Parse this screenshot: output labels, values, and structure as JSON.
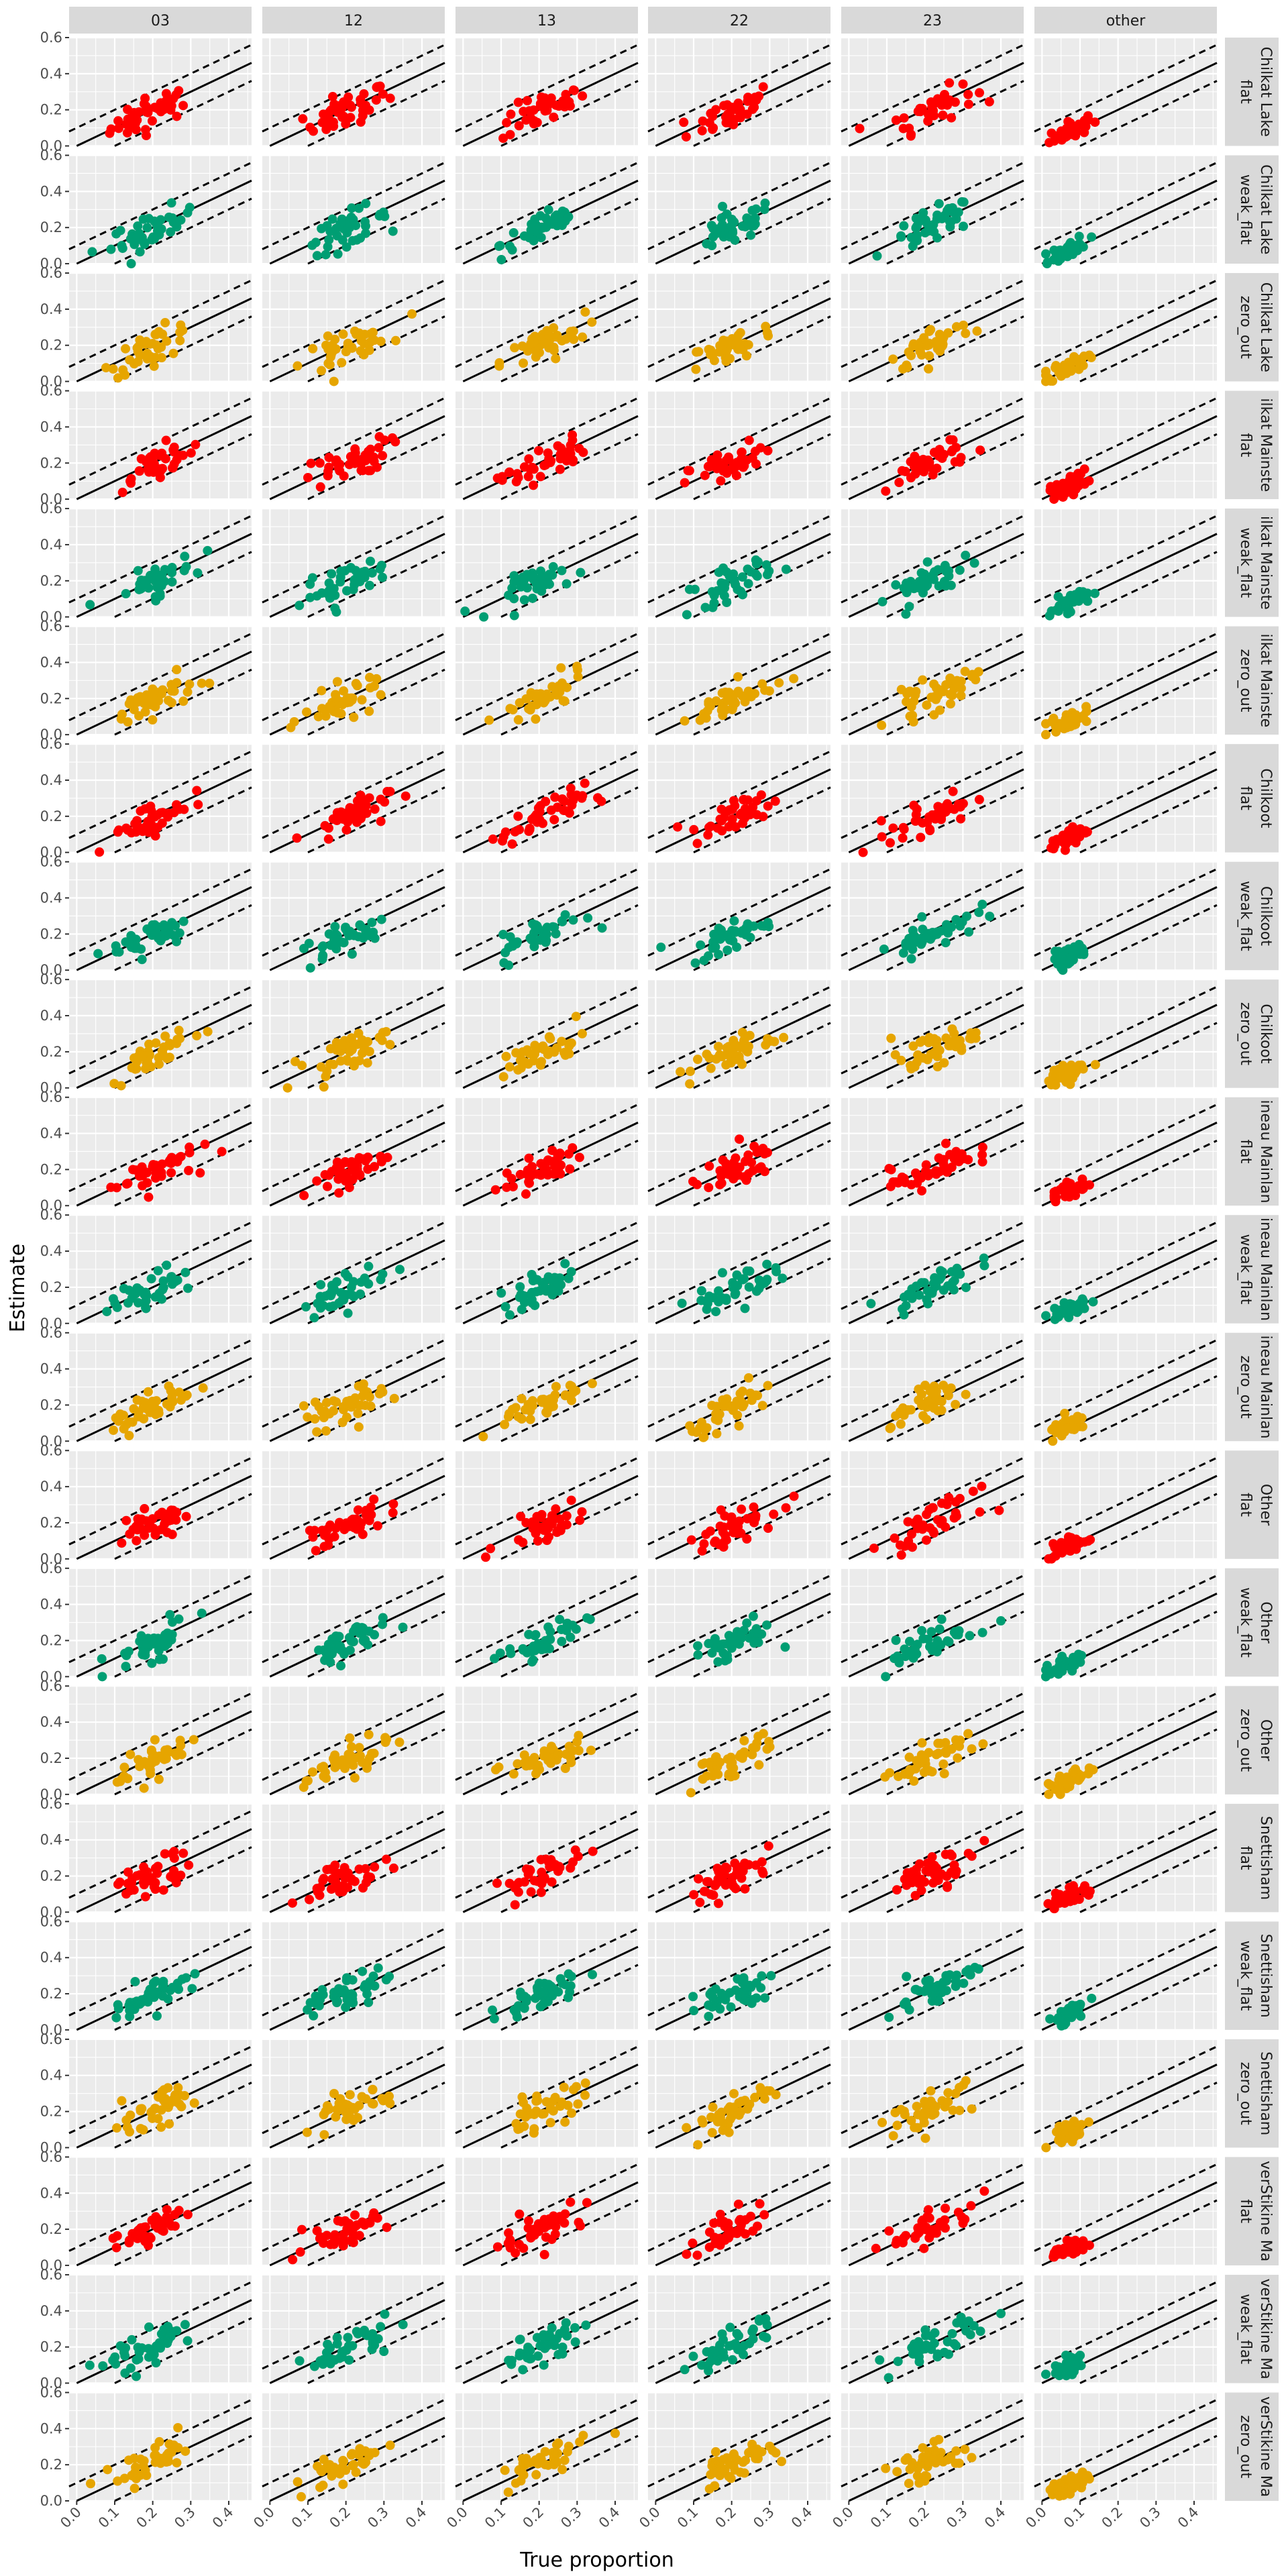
{
  "chart_data": {
    "type": "scatter",
    "layout": "facet_grid",
    "xlabel": "True proportion",
    "ylabel": "Estimate",
    "xlim": [
      -0.02,
      0.46
    ],
    "ylim": [
      0,
      0.6
    ],
    "x_ticks": [
      "0.0",
      "0.1",
      "0.2",
      "0.3",
      "0.4"
    ],
    "x_tick_values": [
      0,
      0.1,
      0.2,
      0.3,
      0.4
    ],
    "y_ticks": [
      "0.0",
      "0.2",
      "0.4",
      "0.6"
    ],
    "y_tick_values": [
      0,
      0.2,
      0.4,
      0.6
    ],
    "grid": true,
    "reference_lines": {
      "identity": {
        "slope": 1,
        "intercept": 0,
        "style": "solid"
      },
      "bands": [
        {
          "slope": 1,
          "intercept": 0.1,
          "style": "dashed"
        },
        {
          "slope": 1,
          "intercept": -0.1,
          "style": "dashed"
        }
      ]
    },
    "colors": {
      "flat": "#ff0000",
      "weak_flat": "#009e73",
      "zero_out": "#e6a500"
    },
    "columns": [
      {
        "label": "03",
        "center": 0.2
      },
      {
        "label": "12",
        "center": 0.2
      },
      {
        "label": "13",
        "center": 0.21
      },
      {
        "label": "22",
        "center": 0.2
      },
      {
        "label": "23",
        "center": 0.22
      },
      {
        "label": "other",
        "center": 0.07
      }
    ],
    "row_groups": [
      {
        "label": "Chilkat Lake",
        "bias": 0.0
      },
      {
        "label": "ilkat Mainste",
        "bias": 0.0
      },
      {
        "label": "Chilkoot",
        "bias": 0.0
      },
      {
        "label": "ineau Mainlan",
        "bias": 0.0
      },
      {
        "label": "Other",
        "bias": -0.01
      },
      {
        "label": "Snettisham",
        "bias": 0.01
      },
      {
        "label": "verStikine Ma",
        "bias": 0.01
      }
    ],
    "prior_types": [
      "flat",
      "weak_flat",
      "zero_out"
    ],
    "points_per_panel": 40,
    "point_spread_x": 0.055,
    "point_spread_y": 0.045
  }
}
